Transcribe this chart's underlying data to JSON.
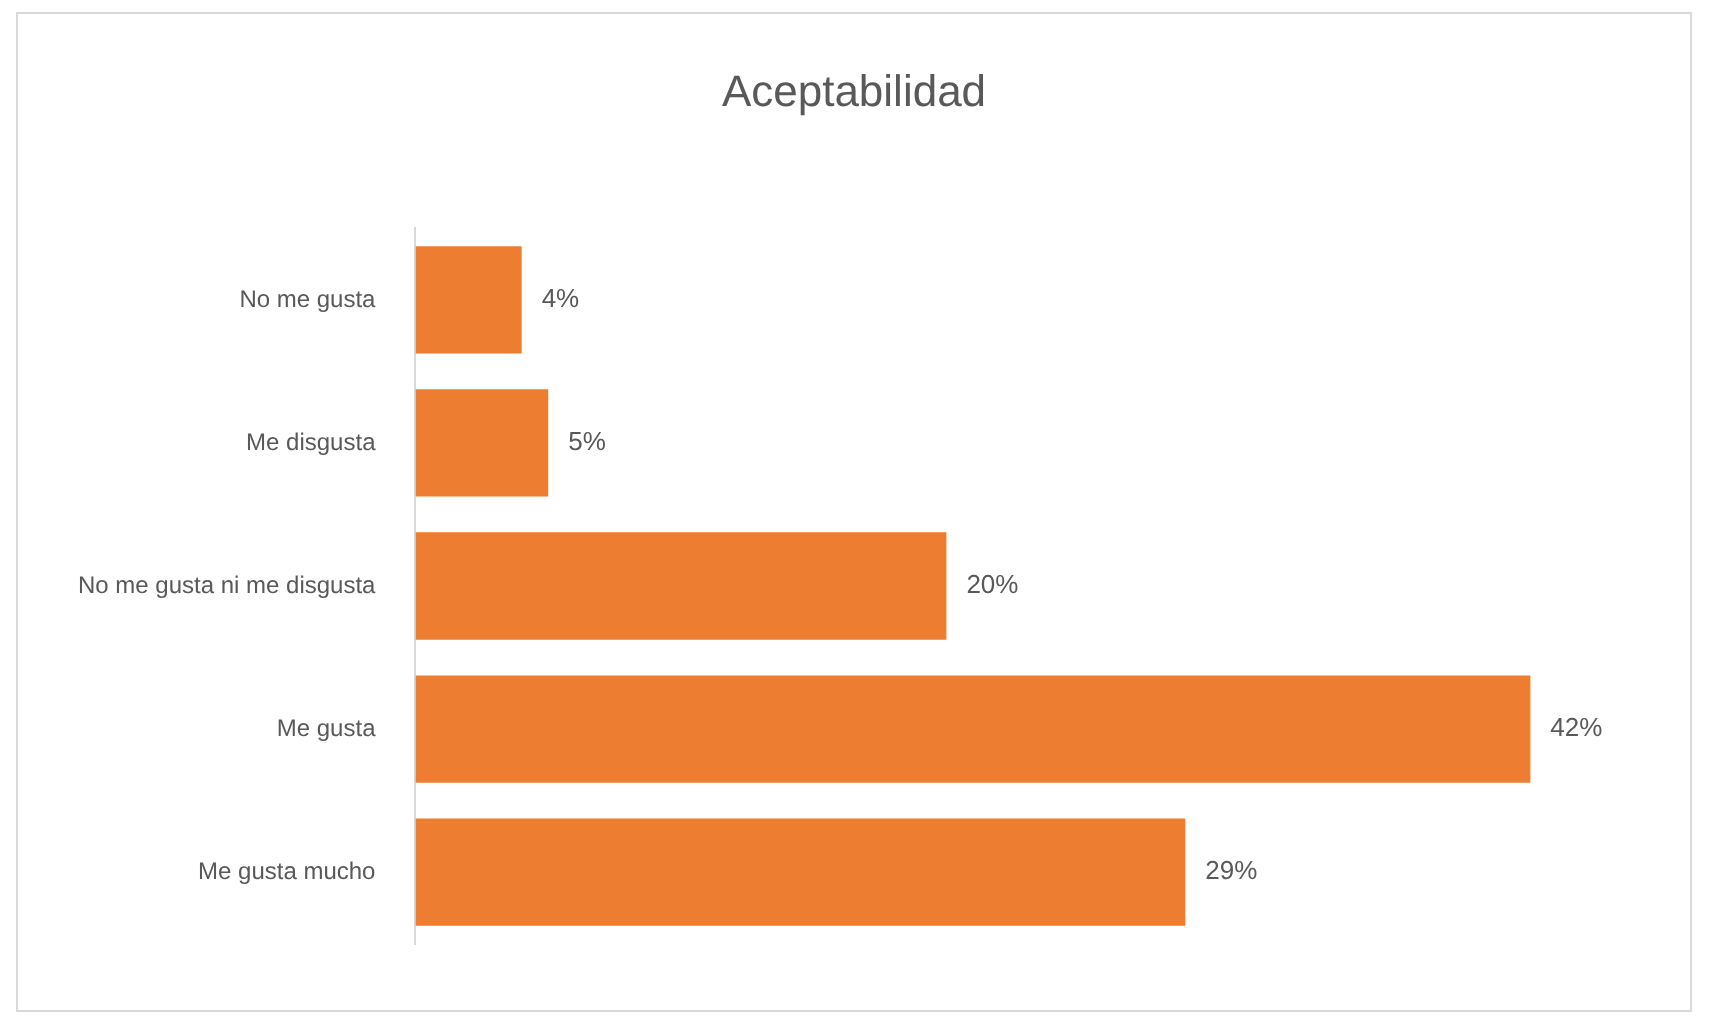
{
  "chart_data": {
    "type": "bar",
    "orientation": "horizontal",
    "title": "Aceptabilidad",
    "categories": [
      "No me gusta",
      "Me disgusta",
      "No me gusta ni me disgusta",
      "Me gusta",
      "Me gusta mucho"
    ],
    "values": [
      4,
      5,
      20,
      42,
      29
    ],
    "value_labels": [
      "4%",
      "5%",
      "20%",
      "42%",
      "29%"
    ],
    "color": "#ed7d31"
  }
}
